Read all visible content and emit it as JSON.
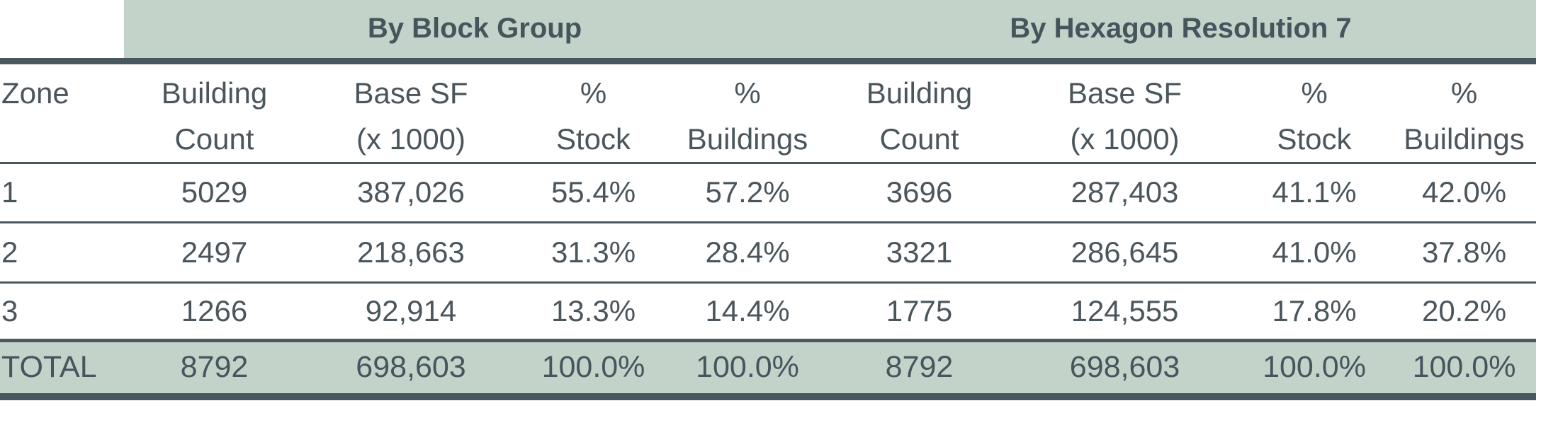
{
  "table": {
    "group_headers": [
      {
        "label": "By Block Group"
      },
      {
        "label": "By Hexagon Resolution 7"
      }
    ],
    "columns": [
      {
        "line1": "Zone",
        "line2": ""
      },
      {
        "line1": "Building",
        "line2": "Count"
      },
      {
        "line1": "Base SF",
        "line2": "(x 1000)"
      },
      {
        "line1": "%",
        "line2": "Stock"
      },
      {
        "line1": "%",
        "line2": "Buildings"
      },
      {
        "line1": "Building",
        "line2": "Count"
      },
      {
        "line1": "Base SF",
        "line2": "(x 1000)"
      },
      {
        "line1": "%",
        "line2": "Stock"
      },
      {
        "line1": "%",
        "line2": "Buildings"
      }
    ],
    "rows": [
      {
        "zone": "1",
        "cells": [
          "5029",
          "387,026",
          "55.4%",
          "57.2%",
          "3696",
          "287,403",
          "41.1%",
          "42.0%"
        ]
      },
      {
        "zone": "2",
        "cells": [
          "2497",
          "218,663",
          "31.3%",
          "28.4%",
          "3321",
          "286,645",
          "41.0%",
          "37.8%"
        ]
      },
      {
        "zone": "3",
        "cells": [
          "1266",
          "92,914",
          "13.3%",
          "14.4%",
          "1775",
          "124,555",
          "17.8%",
          "20.2%"
        ]
      }
    ],
    "total": {
      "zone": "TOTAL",
      "cells": [
        "8792",
        "698,603",
        "100.0%",
        "100.0%",
        "8792",
        "698,603",
        "100.0%",
        "100.0%"
      ]
    }
  },
  "chart_data": {
    "type": "table",
    "title": "",
    "column_groups": [
      "",
      "By Block Group",
      "By Hexagon Resolution 7"
    ],
    "columns": [
      "Zone",
      "Building Count",
      "Base SF (x 1000)",
      "% Stock",
      "% Buildings",
      "Building Count",
      "Base SF (x 1000)",
      "% Stock",
      "% Buildings"
    ],
    "rows": [
      [
        "1",
        5029,
        387026,
        "55.4%",
        "57.2%",
        3696,
        287403,
        "41.1%",
        "42.0%"
      ],
      [
        "2",
        2497,
        218663,
        "31.3%",
        "28.4%",
        3321,
        286645,
        "41.0%",
        "37.8%"
      ],
      [
        "3",
        1266,
        92914,
        "13.3%",
        "14.4%",
        1775,
        124555,
        "17.8%",
        "20.2%"
      ],
      [
        "TOTAL",
        8792,
        698603,
        "100.0%",
        "100.0%",
        8792,
        698603,
        "100.0%",
        "100.0%"
      ]
    ]
  },
  "colors": {
    "band_green": "#c3d3ca",
    "line_slate": "#48585e",
    "text_slate": "#4b565c"
  }
}
